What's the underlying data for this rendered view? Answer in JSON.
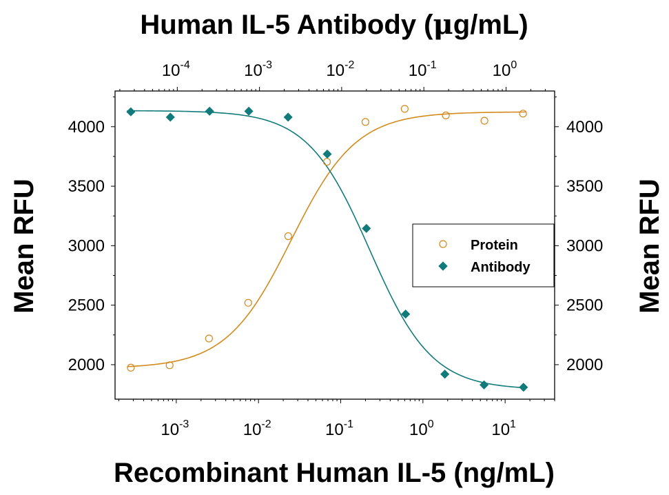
{
  "chart_data": {
    "type": "scatter",
    "title": "",
    "x_label_bottom": "Recombinant Human IL-5 (ng/mL)",
    "x_label_top_parts": {
      "pre": "Human IL-5 Antibody (",
      "mu": "μ",
      "post": "g/mL)"
    },
    "y_label_left": "Mean RFU",
    "y_label_right": "Mean RFU",
    "x_scale": "log",
    "x_bottom_range": [
      0.00018,
      40
    ],
    "x_top_range": [
      1.75e-05,
      3.9
    ],
    "y_range": [
      1710,
      4300
    ],
    "y_ticks": [
      2000,
      2500,
      3000,
      3500,
      4000
    ],
    "x_bottom_ticks": [
      {
        "value": 0.001,
        "base": "10",
        "exp": "-3"
      },
      {
        "value": 0.01,
        "base": "10",
        "exp": "-2"
      },
      {
        "value": 0.1,
        "base": "10",
        "exp": "-1"
      },
      {
        "value": 1,
        "base": "10",
        "exp": "0"
      },
      {
        "value": 10,
        "base": "10",
        "exp": "1"
      }
    ],
    "x_top_ticks": [
      {
        "value": 0.0001,
        "base": "10",
        "exp": "-4"
      },
      {
        "value": 0.001,
        "base": "10",
        "exp": "-3"
      },
      {
        "value": 0.01,
        "base": "10",
        "exp": "-2"
      },
      {
        "value": 0.1,
        "base": "10",
        "exp": "-1"
      },
      {
        "value": 1,
        "base": "10",
        "exp": "0"
      }
    ],
    "grid": false,
    "legend_position": "right-center",
    "series": [
      {
        "name": "Protein",
        "axis": "bottom",
        "marker": "open-circle",
        "color": "#D4891C",
        "x": [
          0.00028,
          0.00083,
          0.0025,
          0.0075,
          0.023,
          0.068,
          0.2,
          0.6,
          1.9,
          5.6,
          16.5
        ],
        "y": [
          1975,
          1995,
          2220,
          2520,
          3080,
          3705,
          4040,
          4150,
          4095,
          4050,
          4110
        ],
        "fit": {
          "bottom": 1970,
          "top": 4125,
          "ec50": 0.025,
          "hill": 1.1
        }
      },
      {
        "name": "Antibody",
        "axis": "top",
        "marker": "filled-diamond",
        "color": "#117A7A",
        "x": [
          2.72e-05,
          8.24e-05,
          0.000247,
          0.000741,
          0.00223,
          0.00668,
          0.02,
          0.06,
          0.18,
          0.54,
          1.63
        ],
        "y": [
          4125,
          4080,
          4130,
          4130,
          4080,
          3770,
          3145,
          2425,
          1920,
          1830,
          1810
        ],
        "fit": {
          "bottom": 1790,
          "top": 4135,
          "ec50": 0.022,
          "hill": 1.15
        }
      }
    ]
  }
}
